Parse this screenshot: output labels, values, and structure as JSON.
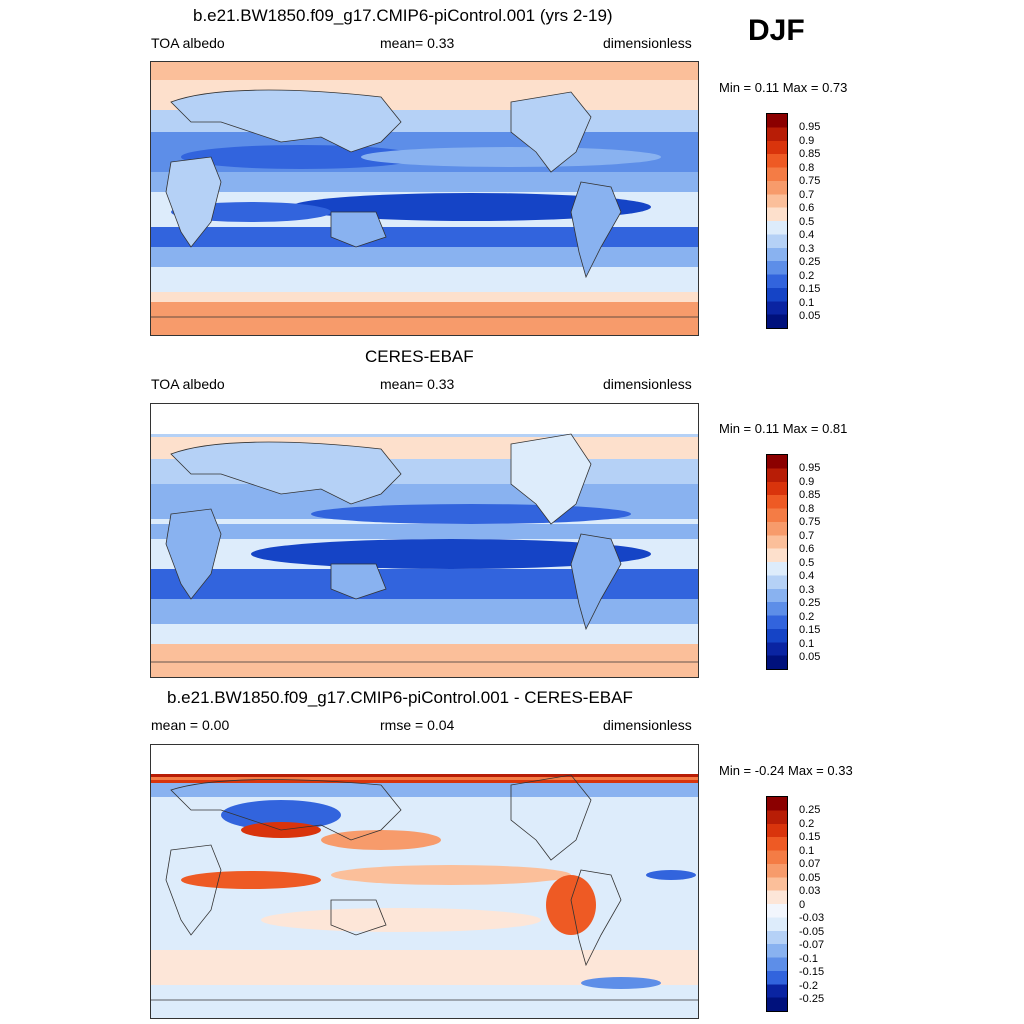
{
  "season": "DJF",
  "panels": [
    {
      "title": "b.e21.BW1850.f09_g17.CMIP6-piControl.001 (yrs 2-19)",
      "left": "TOA albedo",
      "mid": "mean=   0.33",
      "right": "dimensionless",
      "minmax": "Min =   0.11 Max =   0.73",
      "colorbar": {
        "labels": [
          "0.95",
          "0.9",
          "0.85",
          "0.8",
          "0.75",
          "0.7",
          "0.6",
          "0.5",
          "0.4",
          "0.3",
          "0.25",
          "0.2",
          "0.15",
          "0.1",
          "0.05"
        ],
        "colors": [
          "#8b0000",
          "#b81d06",
          "#d9340c",
          "#ee5a24",
          "#f47c45",
          "#f79b6b",
          "#fbbf9a",
          "#fde0cc",
          "#ddecfb",
          "#b5d1f6",
          "#89b2f0",
          "#5d8ee8",
          "#3264dd",
          "#1544c6",
          "#0a24a2",
          "#00117c"
        ]
      }
    },
    {
      "title": "CERES-EBAF",
      "left": "TOA albedo",
      "mid": "mean=   0.33",
      "right": "dimensionless",
      "minmax": "Min =   0.11 Max =   0.81",
      "colorbar": {
        "labels": [
          "0.95",
          "0.9",
          "0.85",
          "0.8",
          "0.75",
          "0.7",
          "0.6",
          "0.5",
          "0.4",
          "0.3",
          "0.25",
          "0.2",
          "0.15",
          "0.1",
          "0.05"
        ],
        "colors": [
          "#8b0000",
          "#b81d06",
          "#d9340c",
          "#ee5a24",
          "#f47c45",
          "#f79b6b",
          "#fbbf9a",
          "#fde0cc",
          "#ddecfb",
          "#b5d1f6",
          "#89b2f0",
          "#5d8ee8",
          "#3264dd",
          "#1544c6",
          "#0a24a2",
          "#00117c"
        ]
      }
    },
    {
      "title": "b.e21.BW1850.f09_g17.CMIP6-piControl.001 - CERES-EBAF",
      "left": "mean =   0.00",
      "mid": "rmse =   0.04",
      "right": "dimensionless",
      "minmax": "Min =  -0.24 Max =   0.33",
      "colorbar": {
        "labels": [
          "0.25",
          "0.2",
          "0.15",
          "0.1",
          "0.07",
          "0.05",
          "0.03",
          "0",
          "-0.03",
          "-0.05",
          "-0.07",
          "-0.1",
          "-0.15",
          "-0.2",
          "-0.25"
        ],
        "colors": [
          "#8b0000",
          "#b81d06",
          "#d9340c",
          "#ee5a24",
          "#f47c45",
          "#f79b6b",
          "#fbbf9a",
          "#fde6d8",
          "#f2f6fd",
          "#ddecfb",
          "#b5d1f6",
          "#89b2f0",
          "#5d8ee8",
          "#3264dd",
          "#0a24a2",
          "#00117c"
        ]
      }
    }
  ]
}
